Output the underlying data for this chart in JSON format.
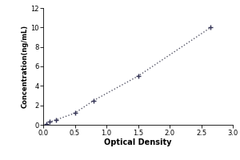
{
  "x_data": [
    0.05,
    0.1,
    0.2,
    0.5,
    0.8,
    1.5,
    2.65
  ],
  "y_data": [
    0.1,
    0.3,
    0.5,
    1.2,
    2.5,
    5.0,
    10.0
  ],
  "xlabel": "Optical Density",
  "ylabel": "Concentration(ng/mL)",
  "xlim": [
    0,
    3
  ],
  "ylim": [
    0,
    12
  ],
  "xticks": [
    0,
    0.5,
    1,
    1.5,
    2,
    2.5,
    3
  ],
  "yticks": [
    0,
    2,
    4,
    6,
    8,
    10,
    12
  ],
  "line_color": "#555566",
  "marker_color": "#333355",
  "background_color": "#ffffff",
  "marker": "+",
  "markersize": 5,
  "markeredgewidth": 1.0,
  "linewidth": 1.0,
  "linestyle": "dotted",
  "xlabel_fontsize": 7,
  "ylabel_fontsize": 6,
  "tick_fontsize": 6
}
